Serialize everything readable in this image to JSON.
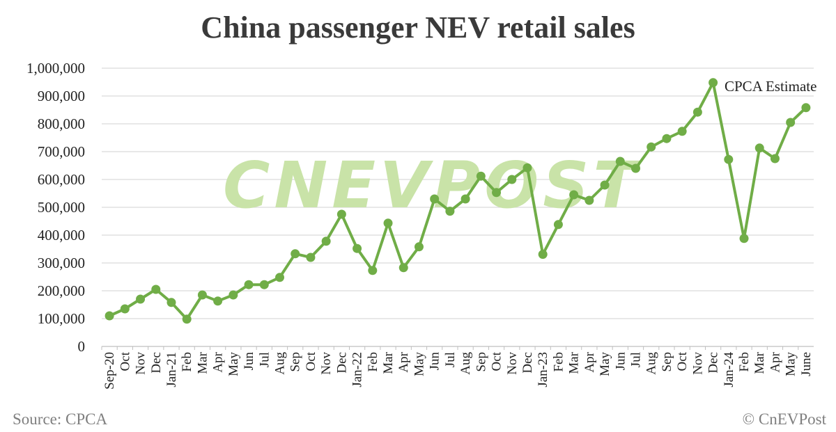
{
  "chart_data": {
    "type": "line",
    "title": "China passenger NEV retail sales",
    "xlabel": "",
    "ylabel": "",
    "ylim": [
      0,
      1000000
    ],
    "yticks": [
      0,
      100000,
      200000,
      300000,
      400000,
      500000,
      600000,
      700000,
      800000,
      900000,
      1000000
    ],
    "ytick_labels": [
      "0",
      "100,000",
      "200,000",
      "300,000",
      "400,000",
      "500,000",
      "600,000",
      "700,000",
      "800,000",
      "900,000",
      "1,000,000"
    ],
    "grid": true,
    "legend": "none",
    "categories": [
      "Sep-20",
      "Oct",
      "Nov",
      "Dec",
      "Jan-21",
      "Feb",
      "Mar",
      "Apr",
      "May",
      "Jun",
      "Jul",
      "Aug",
      "Sep",
      "Oct",
      "Nov",
      "Dec",
      "Jan-22",
      "Feb",
      "Mar",
      "Apr",
      "May",
      "Jun",
      "Jul",
      "Aug",
      "Sep",
      "Oct",
      "Nov",
      "Dec",
      "Jan-23",
      "Feb",
      "Mar",
      "Apr",
      "May",
      "Jun",
      "Jul",
      "Aug",
      "Sep",
      "Oct",
      "Nov",
      "Dec",
      "Jan-24",
      "Feb",
      "Mar",
      "Apr",
      "May",
      "June"
    ],
    "series": [
      {
        "values": [
          110000,
          135000,
          170000,
          205000,
          158000,
          98000,
          185000,
          163000,
          185000,
          222000,
          222000,
          248000,
          333000,
          320000,
          378000,
          475000,
          352000,
          273000,
          443000,
          283000,
          358000,
          530000,
          486000,
          530000,
          612000,
          553000,
          600000,
          642000,
          331000,
          438000,
          545000,
          525000,
          580000,
          665000,
          640000,
          717000,
          747000,
          773000,
          842000,
          948000,
          672000,
          388000,
          713000,
          675000,
          805000,
          858000
        ],
        "color": "#70ad47"
      }
    ],
    "annotations": [
      {
        "text": "CPCA Estimate"
      }
    ],
    "watermark_text": "CNEVPOST",
    "source": "Source: CPCA",
    "copyright": "© CnEVPost"
  },
  "colors": {
    "line": "#70ad47",
    "grid": "#d9d9d9",
    "watermark": "#c9e3a8",
    "footer": "#7f7f7f"
  }
}
